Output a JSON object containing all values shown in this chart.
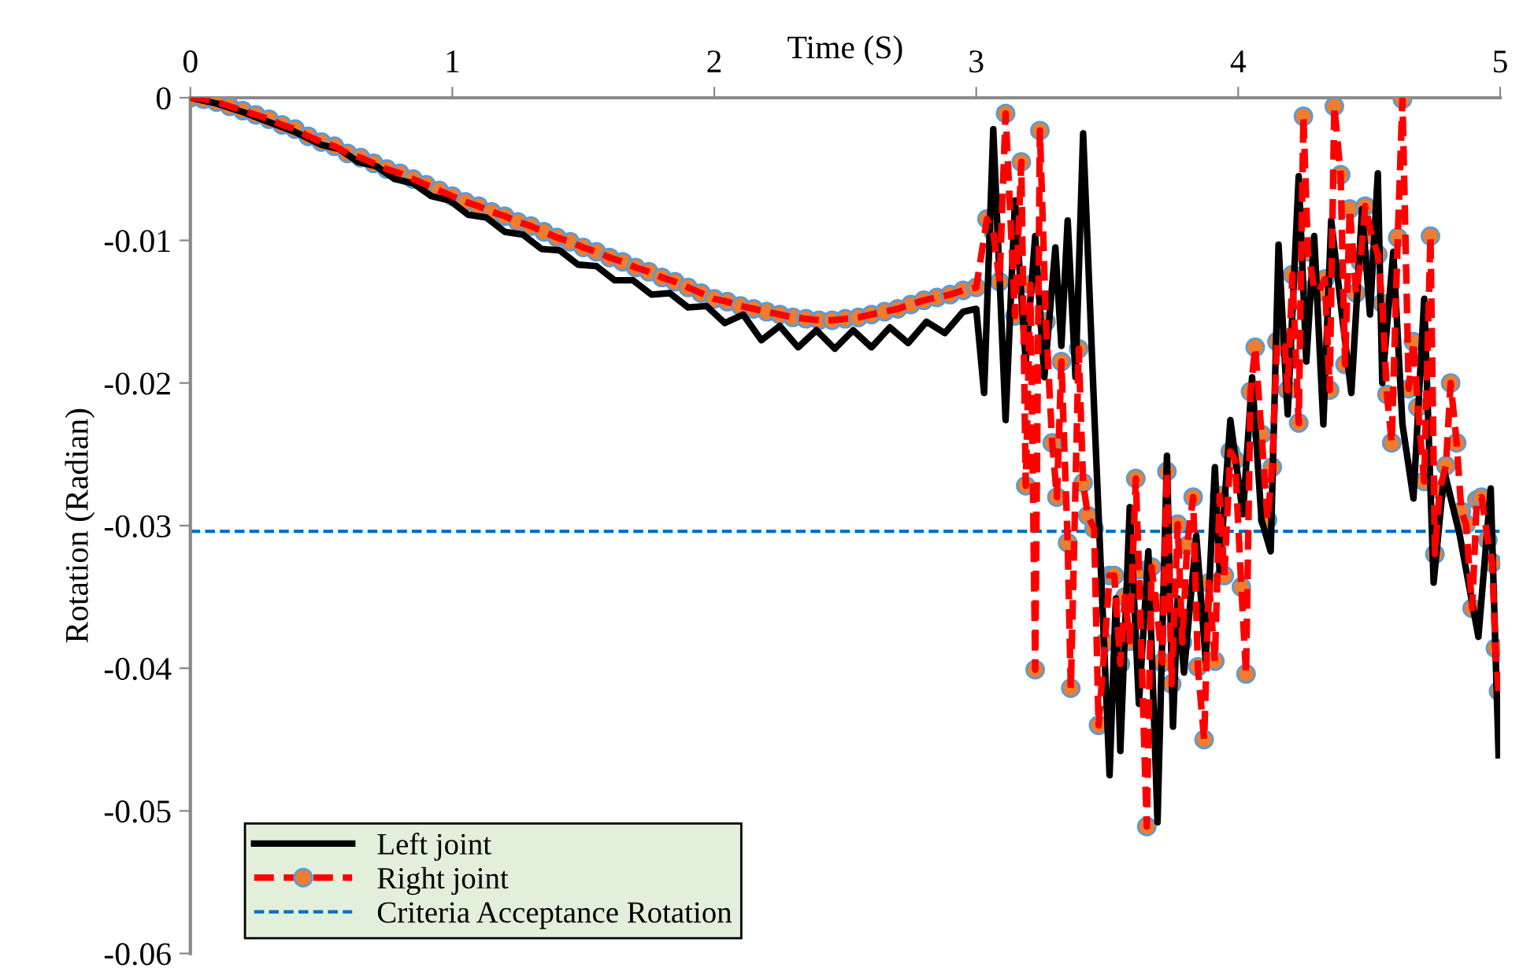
{
  "chart_data": {
    "type": "line",
    "xlabel": "Time (S)",
    "ylabel": "Rotation (Radian)",
    "xlim": [
      0,
      5
    ],
    "xticks": [
      0,
      1,
      2,
      3,
      4,
      5
    ],
    "ylim": [
      -0.06,
      0
    ],
    "yticks": [
      0,
      -0.01,
      -0.02,
      -0.03,
      -0.04,
      -0.05,
      -0.06
    ],
    "grid": false,
    "legend": "bottom left",
    "series": [
      {
        "name": "Left joint",
        "color": "#000000",
        "marker": "none",
        "line_style": "solid",
        "x": [
          0,
          0.1,
          0.2,
          0.3,
          0.4,
          0.5,
          0.57,
          0.64,
          0.71,
          0.78,
          0.85,
          0.92,
          0.99,
          1.06,
          1.13,
          1.2,
          1.27,
          1.34,
          1.41,
          1.48,
          1.55,
          1.62,
          1.69,
          1.76,
          1.83,
          1.9,
          1.97,
          2.04,
          2.11,
          2.18,
          2.25,
          2.32,
          2.39,
          2.46,
          2.53,
          2.6,
          2.67,
          2.74,
          2.81,
          2.88,
          2.95,
          3.0,
          3.03,
          3.065,
          3.112,
          3.148,
          3.189,
          3.225,
          3.26,
          3.302,
          3.325,
          3.349,
          3.379,
          3.408,
          3.45,
          3.509,
          3.533,
          3.55,
          3.586,
          3.621,
          3.657,
          3.692,
          3.728,
          3.751,
          3.769,
          3.793,
          3.84,
          3.876,
          3.911,
          3.929,
          3.97,
          4.018,
          4.053,
          4.089,
          4.124,
          4.154,
          4.189,
          4.231,
          4.26,
          4.29,
          4.325,
          4.355,
          4.396,
          4.432,
          4.473,
          4.503,
          4.533,
          4.55,
          4.592,
          4.627,
          4.669,
          4.71,
          4.746,
          4.787,
          4.846,
          4.917,
          4.964,
          4.994
        ],
        "values": [
          0,
          -0.0004,
          -0.001,
          -0.0017,
          -0.0024,
          -0.0033,
          -0.0036,
          -0.0045,
          -0.0048,
          -0.0057,
          -0.006,
          -0.0069,
          -0.0072,
          -0.0082,
          -0.0084,
          -0.0094,
          -0.0096,
          -0.0106,
          -0.0107,
          -0.0117,
          -0.0118,
          -0.0128,
          -0.0128,
          -0.0138,
          -0.0137,
          -0.0147,
          -0.0146,
          -0.0158,
          -0.0152,
          -0.017,
          -0.016,
          -0.0175,
          -0.0163,
          -0.0176,
          -0.0163,
          -0.0175,
          -0.0161,
          -0.0172,
          -0.0157,
          -0.0165,
          -0.015,
          -0.0148,
          -0.0207,
          -0.0022,
          -0.0226,
          -0.0072,
          -0.0185,
          -0.0097,
          -0.0196,
          -0.0105,
          -0.0174,
          -0.0086,
          -0.0196,
          -0.0025,
          -0.0218,
          -0.0475,
          -0.0351,
          -0.0458,
          -0.0287,
          -0.0425,
          -0.0318,
          -0.0508,
          -0.0251,
          -0.0441,
          -0.0351,
          -0.0403,
          -0.0307,
          -0.0395,
          -0.0259,
          -0.0332,
          -0.0226,
          -0.0292,
          -0.0196,
          -0.0296,
          -0.0318,
          -0.0103,
          -0.0222,
          -0.0055,
          -0.0185,
          -0.0097,
          -0.0229,
          -0.0086,
          -0.0152,
          -0.0207,
          -0.0078,
          -0.0152,
          -0.0053,
          -0.02,
          -0.0108,
          -0.0229,
          -0.0281,
          -0.0141,
          -0.034,
          -0.0262,
          -0.0307,
          -0.0378,
          -0.0274,
          -0.0461
        ]
      },
      {
        "name": "Right joint",
        "color": "#ff0000",
        "marker": "circle",
        "line_style": "dashed",
        "x": [
          0,
          0.05,
          0.1,
          0.15,
          0.2,
          0.25,
          0.3,
          0.35,
          0.4,
          0.45,
          0.5,
          0.55,
          0.6,
          0.65,
          0.7,
          0.75,
          0.8,
          0.85,
          0.9,
          0.95,
          1.0,
          1.05,
          1.1,
          1.15,
          1.2,
          1.25,
          1.3,
          1.35,
          1.4,
          1.45,
          1.5,
          1.55,
          1.6,
          1.65,
          1.7,
          1.75,
          1.8,
          1.85,
          1.9,
          1.95,
          2.0,
          2.05,
          2.1,
          2.15,
          2.2,
          2.25,
          2.3,
          2.35,
          2.4,
          2.45,
          2.5,
          2.55,
          2.6,
          2.65,
          2.7,
          2.75,
          2.8,
          2.85,
          2.9,
          2.95,
          3.0,
          3.041,
          3.065,
          3.089,
          3.112,
          3.148,
          3.172,
          3.189,
          3.207,
          3.225,
          3.243,
          3.266,
          3.29,
          3.308,
          3.325,
          3.349,
          3.361,
          3.391,
          3.408,
          3.426,
          3.45,
          3.467,
          3.491,
          3.509,
          3.527,
          3.55,
          3.568,
          3.586,
          3.609,
          3.621,
          3.651,
          3.669,
          3.686,
          3.71,
          3.728,
          3.746,
          3.769,
          3.787,
          3.805,
          3.828,
          3.846,
          3.87,
          3.888,
          3.911,
          3.929,
          3.947,
          3.97,
          3.988,
          4.012,
          4.03,
          4.047,
          4.065,
          4.089,
          4.112,
          4.13,
          4.148,
          4.178,
          4.189,
          4.207,
          4.231,
          4.249,
          4.266,
          4.29,
          4.308,
          4.331,
          4.349,
          4.367,
          4.391,
          4.408,
          4.426,
          4.45,
          4.467,
          4.485,
          4.509,
          4.533,
          4.55,
          4.568,
          4.586,
          4.609,
          4.627,
          4.651,
          4.669,
          4.686,
          4.71,
          4.734,
          4.751,
          4.769,
          4.793,
          4.811,
          4.834,
          4.852,
          4.87,
          4.893,
          4.911,
          4.929,
          4.953,
          4.97,
          4.982,
          4.994
        ],
        "values": [
          0,
          -0.0001,
          -0.0003,
          -0.0006,
          -0.0009,
          -0.0012,
          -0.0015,
          -0.0019,
          -0.0022,
          -0.0027,
          -0.0031,
          -0.0034,
          -0.0039,
          -0.0042,
          -0.0046,
          -0.005,
          -0.0053,
          -0.0057,
          -0.0061,
          -0.0065,
          -0.0069,
          -0.0073,
          -0.0076,
          -0.008,
          -0.0083,
          -0.0087,
          -0.009,
          -0.0094,
          -0.0098,
          -0.0101,
          -0.0105,
          -0.0108,
          -0.0112,
          -0.0115,
          -0.0119,
          -0.0122,
          -0.0126,
          -0.0129,
          -0.0133,
          -0.0137,
          -0.0141,
          -0.0143,
          -0.0146,
          -0.0148,
          -0.015,
          -0.0152,
          -0.0154,
          -0.0155,
          -0.0156,
          -0.0156,
          -0.0155,
          -0.0154,
          -0.0152,
          -0.015,
          -0.0148,
          -0.0145,
          -0.0142,
          -0.014,
          -0.0138,
          -0.0135,
          -0.0133,
          -0.0085,
          -0.0094,
          -0.0129,
          -0.0011,
          -0.0153,
          -0.0045,
          -0.0272,
          -0.0131,
          -0.0401,
          -0.0023,
          -0.0157,
          -0.0242,
          -0.028,
          -0.0185,
          -0.0312,
          -0.0414,
          -0.0176,
          -0.027,
          -0.0293,
          -0.0302,
          -0.044,
          -0.0382,
          -0.0335,
          -0.0335,
          -0.0397,
          -0.035,
          -0.0381,
          -0.0267,
          -0.0331,
          -0.0511,
          -0.0329,
          -0.0354,
          -0.0396,
          -0.0262,
          -0.0411,
          -0.0299,
          -0.0382,
          -0.0314,
          -0.028,
          -0.0399,
          -0.045,
          -0.034,
          -0.0395,
          -0.0279,
          -0.0335,
          -0.0248,
          -0.0254,
          -0.0343,
          -0.0404,
          -0.0206,
          -0.0175,
          -0.0236,
          -0.0296,
          -0.0259,
          -0.0171,
          -0.0175,
          -0.0205,
          -0.0124,
          -0.0228,
          -0.0013,
          -0.0108,
          -0.0133,
          -0.0136,
          -0.0127,
          -0.0205,
          -0.0006,
          -0.0054,
          -0.0187,
          -0.0078,
          -0.0137,
          -0.0115,
          -0.0076,
          -0.0096,
          -0.011,
          -0.0144,
          -0.0208,
          -0.0242,
          -0.0098,
          -0.0001,
          -0.0204,
          -0.0171,
          -0.0217,
          -0.0269,
          -0.0097,
          -0.032,
          -0.0275,
          -0.0258,
          -0.02,
          -0.0242,
          -0.029,
          -0.0299,
          -0.0358,
          -0.0282,
          -0.028,
          -0.031,
          -0.0326,
          -0.0386,
          -0.0416
        ]
      }
    ],
    "ref_lines": [
      {
        "axis": "y",
        "value": -0.0304,
        "label": "Criteria Acceptance Rotation",
        "color": "#0070c0",
        "line_style": "dashed"
      }
    ]
  }
}
